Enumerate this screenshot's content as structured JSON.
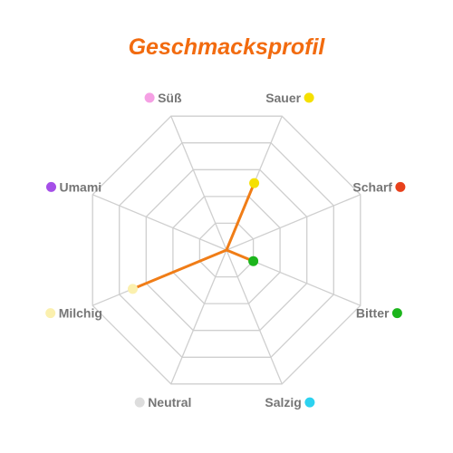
{
  "title": "Geschmacksprofil",
  "title_color": "#f26b0f",
  "chart_data": {
    "type": "radar",
    "axes": [
      {
        "label": "Süß",
        "color": "#f5a0e4"
      },
      {
        "label": "Sauer",
        "color": "#f5e000"
      },
      {
        "label": "Scharf",
        "color": "#e8411c"
      },
      {
        "label": "Bitter",
        "color": "#1cb51c"
      },
      {
        "label": "Salzig",
        "color": "#2cd2f0"
      },
      {
        "label": "Neutral",
        "color": "#dddddd"
      },
      {
        "label": "Milchig",
        "color": "#fbf0ae"
      },
      {
        "label": "Umami",
        "color": "#a54fe8"
      }
    ],
    "values": [
      0,
      2.5,
      0,
      1,
      0,
      0,
      3.5,
      0
    ],
    "ylim": [
      0,
      5
    ],
    "rings": 5,
    "grid": true,
    "series": [
      {
        "values": [
          0,
          2.5,
          0,
          1,
          0,
          0,
          3.5,
          0
        ],
        "color": "#f07d17",
        "fill": "#f5c79d"
      }
    ],
    "point_colors": [
      "#f5a0e4",
      "#f5e000",
      "#e8411c",
      "#1cb51c",
      "#2cd2f0",
      "#dddddd",
      "#fbf0ae",
      "#a54fe8"
    ]
  }
}
